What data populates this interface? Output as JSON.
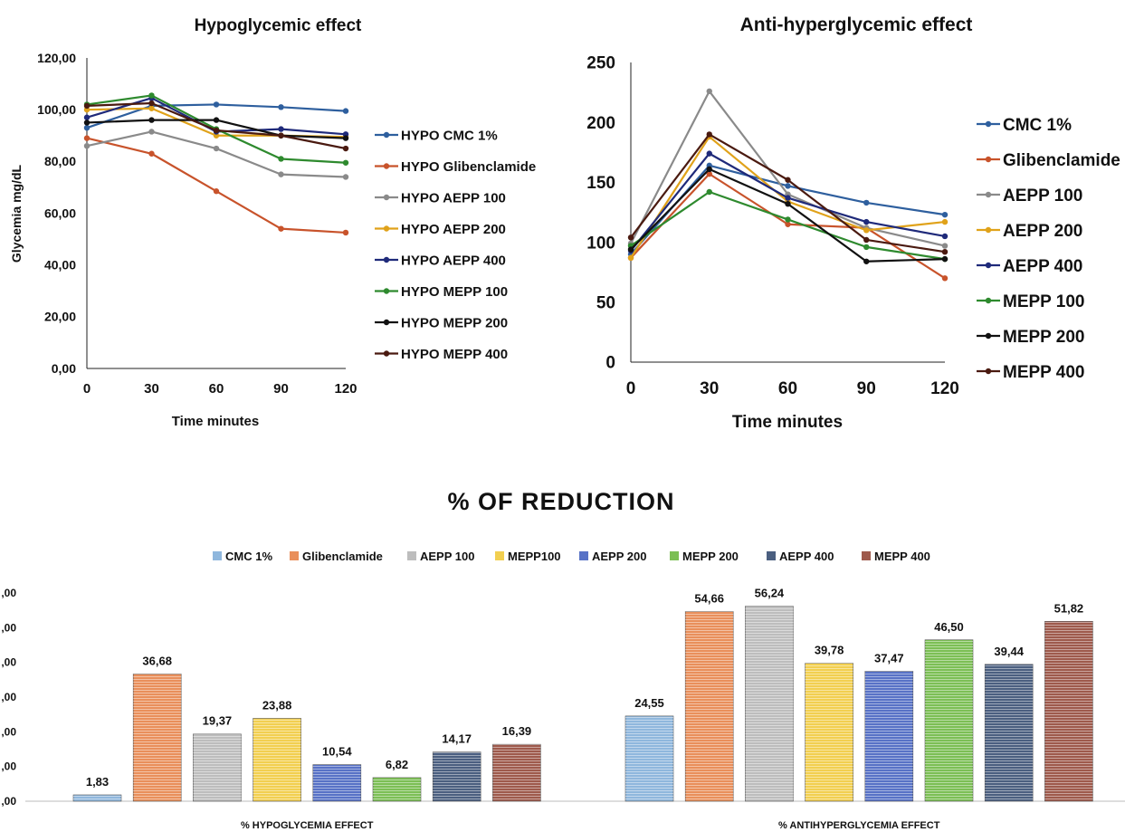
{
  "chart_data": [
    {
      "type": "line",
      "title": "Hypoglycemic effect",
      "xlabel": "Time minutes",
      "ylabel": "Glycemia mg/dL",
      "x": [
        0,
        30,
        60,
        90,
        120
      ],
      "xticks": [
        "0",
        "30",
        "60",
        "90",
        "120"
      ],
      "yticks": [
        "0,00",
        "20,00",
        "40,00",
        "60,00",
        "80,00",
        "100,00",
        "120,00"
      ],
      "ylim": [
        0,
        120
      ],
      "grid": false,
      "legend": "right",
      "series": [
        {
          "name": "HYPO CMC 1%",
          "color": "#2e5f9e",
          "values": [
            93,
            101.5,
            102,
            101,
            99.5
          ]
        },
        {
          "name": "HYPO Glibenclamide",
          "color": "#c8532b",
          "values": [
            89,
            83,
            68.5,
            54,
            52.5
          ]
        },
        {
          "name": "HYPO AEPP 100",
          "color": "#8a8a8a",
          "values": [
            86,
            91.5,
            85,
            75,
            74
          ]
        },
        {
          "name": "HYPO AEPP 200",
          "color": "#e0a21a",
          "values": [
            100,
            100.5,
            90,
            90,
            89.5
          ]
        },
        {
          "name": "HYPO AEPP 400",
          "color": "#1f2a7a",
          "values": [
            97,
            104.5,
            91.5,
            92.5,
            90.5
          ]
        },
        {
          "name": "HYPO MEPP 100",
          "color": "#2e8a2e",
          "values": [
            102,
            105.5,
            92.5,
            81,
            79.5
          ]
        },
        {
          "name": "HYPO MEPP 200",
          "color": "#111111",
          "values": [
            95,
            96,
            96,
            90,
            89
          ]
        },
        {
          "name": "HYPO MEPP 400",
          "color": "#4a1a10",
          "values": [
            101.5,
            102.5,
            92,
            90,
            85
          ]
        }
      ]
    },
    {
      "type": "line",
      "title": "Anti-hyperglycemic  effect",
      "xlabel": "Time minutes",
      "ylabel": "",
      "x": [
        0,
        30,
        60,
        90,
        120
      ],
      "xticks": [
        "0",
        "30",
        "60",
        "90",
        "120"
      ],
      "yticks": [
        "0",
        "50",
        "100",
        "150",
        "200",
        "250"
      ],
      "ylim": [
        0,
        250
      ],
      "grid": false,
      "legend": "right",
      "series": [
        {
          "name": "CMC 1%",
          "color": "#2e5f9e",
          "values": [
            90,
            164,
            147,
            133,
            123
          ]
        },
        {
          "name": "Glibenclamide",
          "color": "#c8532b",
          "values": [
            87,
            157,
            115,
            112,
            70
          ]
        },
        {
          "name": "AEPP 100",
          "color": "#8a8a8a",
          "values": [
            99,
            226,
            140,
            112,
            97
          ]
        },
        {
          "name": "AEPP 200",
          "color": "#e0a21a",
          "values": [
            87,
            188,
            134,
            110,
            117
          ]
        },
        {
          "name": "AEPP 400",
          "color": "#1f2a7a",
          "values": [
            93,
            174,
            137,
            117,
            105
          ]
        },
        {
          "name": "MEPP 100",
          "color": "#2e8a2e",
          "values": [
            97,
            142,
            119,
            96,
            86
          ]
        },
        {
          "name": "MEPP 200",
          "color": "#111111",
          "values": [
            94,
            161,
            132,
            84,
            86
          ]
        },
        {
          "name": "MEPP 400",
          "color": "#4a1a10",
          "values": [
            104,
            190,
            152,
            102,
            92
          ]
        }
      ]
    },
    {
      "type": "bar",
      "title": "% OF REDUCTION",
      "xlabel": "",
      "ylabel": "",
      "categories": [
        "% HYPOGLYCEMIA EFFECT",
        "% ANTIHYPERGLYCEMIA EFFECT"
      ],
      "ytick_labels": [
        ",00",
        ",00",
        ",00",
        ",00",
        ",00",
        ",00",
        ",00"
      ],
      "ylim": [
        0,
        60
      ],
      "legend": "top",
      "series": [
        {
          "name": "CMC 1%",
          "color": "#8fb7dd",
          "values": [
            1.83,
            24.55
          ],
          "labels": [
            "1,83",
            "24,55"
          ]
        },
        {
          "name": "Glibenclamide",
          "color": "#e98f5b",
          "values": [
            36.68,
            54.66
          ],
          "labels": [
            "36,68",
            "54,66"
          ]
        },
        {
          "name": "AEPP 100",
          "color": "#bdbdbd",
          "values": [
            19.37,
            56.24
          ],
          "labels": [
            "19,37",
            "56,24"
          ]
        },
        {
          "name": "MEPP100",
          "color": "#f2cf50",
          "values": [
            23.88,
            39.78
          ],
          "labels": [
            "23,88",
            "39,78"
          ]
        },
        {
          "name": "AEPP 200",
          "color": "#5872c6",
          "values": [
            10.54,
            37.47
          ],
          "labels": [
            "10,54",
            "37,47"
          ]
        },
        {
          "name": "MEPP 200",
          "color": "#7cbf55",
          "values": [
            6.82,
            46.5
          ],
          "labels": [
            "6,82",
            "46,50"
          ]
        },
        {
          "name": "AEPP 400",
          "color": "#4b5f80",
          "values": [
            14.17,
            39.44
          ],
          "labels": [
            "14,17",
            "39,44"
          ]
        },
        {
          "name": "MEPP 400",
          "color": "#9e5a4c",
          "values": [
            16.39,
            51.82
          ],
          "labels": [
            "16,39",
            "51,82"
          ]
        }
      ]
    }
  ]
}
